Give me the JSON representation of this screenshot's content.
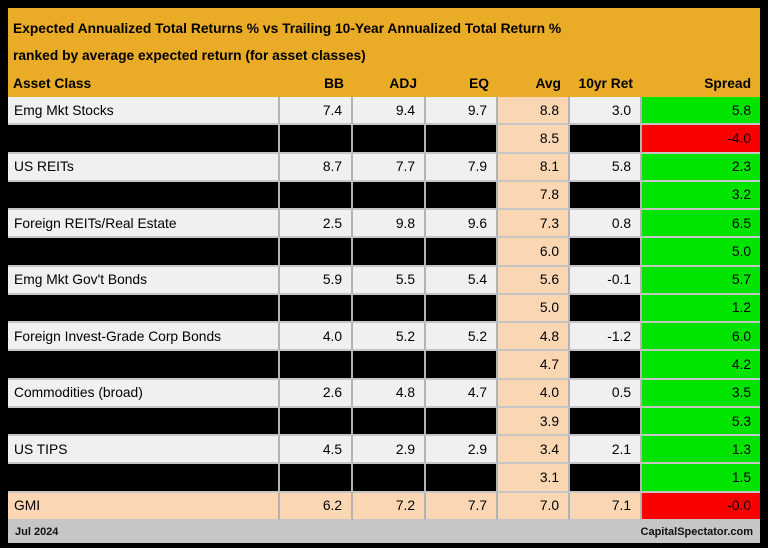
{
  "colors": {
    "gold": "#EAAC27",
    "peach": "#FAD7B2",
    "green": "#00E400",
    "red": "#FA0000",
    "row_light": "#F0F0F0",
    "row_black": "#000000",
    "footer_grey": "#C6C6C6"
  },
  "header": {
    "title_line1": "Expected Annualized Total Returns % vs Trailing 10-Year Annualized Total Return %",
    "title_line2": "ranked by average expected return (for asset classes)"
  },
  "table": {
    "columns": [
      "Asset Class",
      "BB",
      "ADJ",
      "EQ",
      "Avg",
      "10yr Ret",
      "Spread"
    ],
    "rows": [
      {
        "asset": "Emg Mkt Stocks",
        "bb": "7.4",
        "adj": "9.4",
        "eq": "9.7",
        "avg": "8.8",
        "ret10": "3.0",
        "spread": "5.8",
        "spread_color": "green",
        "row_style": "light"
      },
      {
        "asset": "",
        "bb": "",
        "adj": "",
        "eq": "",
        "avg": "8.5",
        "ret10": "",
        "spread": "-4.0",
        "spread_color": "red",
        "row_style": "black"
      },
      {
        "asset": "US REITs",
        "bb": "8.7",
        "adj": "7.7",
        "eq": "7.9",
        "avg": "8.1",
        "ret10": "5.8",
        "spread": "2.3",
        "spread_color": "green",
        "row_style": "light"
      },
      {
        "asset": "",
        "bb": "",
        "adj": "",
        "eq": "",
        "avg": "7.8",
        "ret10": "",
        "spread": "3.2",
        "spread_color": "green",
        "row_style": "black"
      },
      {
        "asset": "Foreign REITs/Real Estate",
        "bb": "2.5",
        "adj": "9.8",
        "eq": "9.6",
        "avg": "7.3",
        "ret10": "0.8",
        "spread": "6.5",
        "spread_color": "green",
        "row_style": "light"
      },
      {
        "asset": "",
        "bb": "",
        "adj": "",
        "eq": "",
        "avg": "6.0",
        "ret10": "",
        "spread": "5.0",
        "spread_color": "green",
        "row_style": "black"
      },
      {
        "asset": "Emg Mkt Gov't Bonds",
        "bb": "5.9",
        "adj": "5.5",
        "eq": "5.4",
        "avg": "5.6",
        "ret10": "-0.1",
        "spread": "5.7",
        "spread_color": "green",
        "row_style": "light"
      },
      {
        "asset": "",
        "bb": "",
        "adj": "",
        "eq": "",
        "avg": "5.0",
        "ret10": "",
        "spread": "1.2",
        "spread_color": "green",
        "row_style": "black"
      },
      {
        "asset": "Foreign Invest-Grade Corp Bonds",
        "bb": "4.0",
        "adj": "5.2",
        "eq": "5.2",
        "avg": "4.8",
        "ret10": "-1.2",
        "spread": "6.0",
        "spread_color": "green",
        "row_style": "light"
      },
      {
        "asset": "",
        "bb": "",
        "adj": "",
        "eq": "",
        "avg": "4.7",
        "ret10": "",
        "spread": "4.2",
        "spread_color": "green",
        "row_style": "black"
      },
      {
        "asset": "Commodities (broad)",
        "bb": "2.6",
        "adj": "4.8",
        "eq": "4.7",
        "avg": "4.0",
        "ret10": "0.5",
        "spread": "3.5",
        "spread_color": "green",
        "row_style": "light"
      },
      {
        "asset": "",
        "bb": "",
        "adj": "",
        "eq": "",
        "avg": "3.9",
        "ret10": "",
        "spread": "5.3",
        "spread_color": "green",
        "row_style": "black"
      },
      {
        "asset": "US TIPS",
        "bb": "4.5",
        "adj": "2.9",
        "eq": "2.9",
        "avg": "3.4",
        "ret10": "2.1",
        "spread": "1.3",
        "spread_color": "green",
        "row_style": "light"
      },
      {
        "asset": "",
        "bb": "",
        "adj": "",
        "eq": "",
        "avg": "3.1",
        "ret10": "",
        "spread": "1.5",
        "spread_color": "green",
        "row_style": "black"
      },
      {
        "asset": "GMI",
        "bb": "6.2",
        "adj": "7.2",
        "eq": "7.7",
        "avg": "7.0",
        "ret10": "7.1",
        "spread": "-0.0",
        "spread_color": "red",
        "row_style": "peach"
      }
    ]
  },
  "footer": {
    "date": "Jul 2024",
    "source": "CapitalSpectator.com"
  },
  "chart_data": {
    "type": "table",
    "title": "Expected Annualized Total Returns % vs Trailing 10-Year Annualized Total Return % ranked by average expected return (for asset classes)",
    "columns": [
      "Asset Class",
      "BB",
      "ADJ",
      "EQ",
      "Avg",
      "10yr Ret",
      "Spread"
    ],
    "rows": [
      [
        "Emg Mkt Stocks",
        7.4,
        9.4,
        9.7,
        8.8,
        3.0,
        5.8
      ],
      [
        null,
        null,
        null,
        null,
        8.5,
        null,
        -4.0
      ],
      [
        "US REITs",
        8.7,
        7.7,
        7.9,
        8.1,
        5.8,
        2.3
      ],
      [
        null,
        null,
        null,
        null,
        7.8,
        null,
        3.2
      ],
      [
        "Foreign REITs/Real Estate",
        2.5,
        9.8,
        9.6,
        7.3,
        0.8,
        6.5
      ],
      [
        null,
        null,
        null,
        null,
        6.0,
        null,
        5.0
      ],
      [
        "Emg Mkt Gov't Bonds",
        5.9,
        5.5,
        5.4,
        5.6,
        -0.1,
        5.7
      ],
      [
        null,
        null,
        null,
        null,
        5.0,
        null,
        1.2
      ],
      [
        "Foreign Invest-Grade Corp Bonds",
        4.0,
        5.2,
        5.2,
        4.8,
        -1.2,
        6.0
      ],
      [
        null,
        null,
        null,
        null,
        4.7,
        null,
        4.2
      ],
      [
        "Commodities (broad)",
        2.6,
        4.8,
        4.7,
        4.0,
        0.5,
        3.5
      ],
      [
        null,
        null,
        null,
        null,
        3.9,
        null,
        5.3
      ],
      [
        "US TIPS",
        4.5,
        2.9,
        2.9,
        3.4,
        2.1,
        1.3
      ],
      [
        null,
        null,
        null,
        null,
        3.1,
        null,
        1.5
      ],
      [
        "GMI",
        6.2,
        7.2,
        7.7,
        7.0,
        7.1,
        -0.0
      ]
    ],
    "notes": "Black rows are redacted asset classes showing only Avg and Spread; Spread cells colored green for positive, red for negative; Avg column highlighted peach; GMI summary row highlighted peach."
  }
}
